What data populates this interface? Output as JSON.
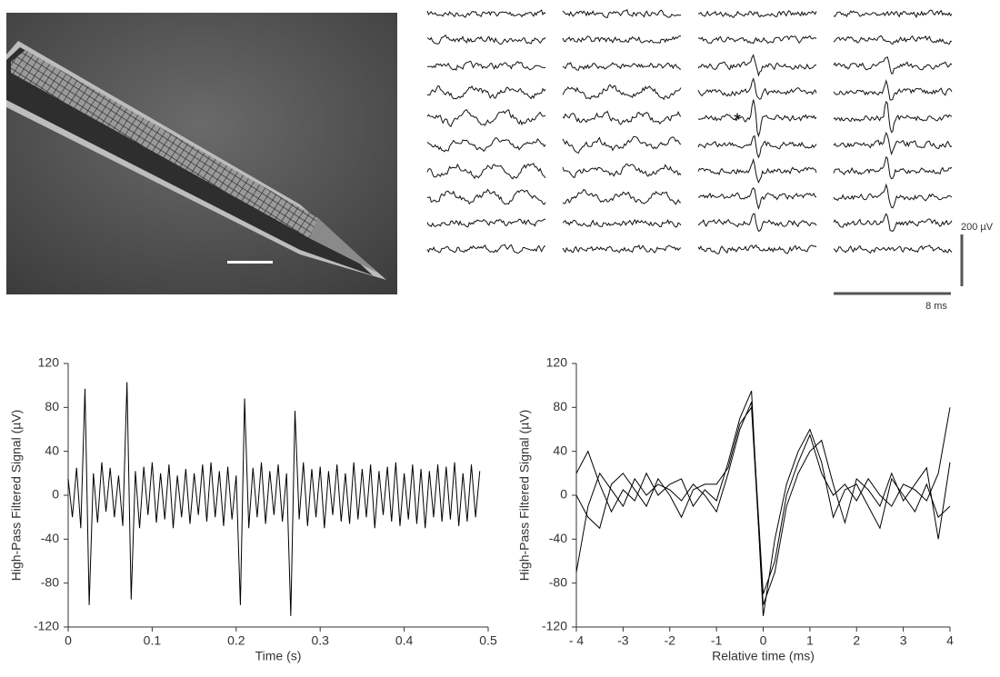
{
  "traces_panel": {
    "marker": "*",
    "scale_y_label": "200 µV",
    "scale_x_label": "8 ms"
  },
  "chart_data": [
    {
      "type": "line",
      "x_label": "Time (s)",
      "y_label": "High-Pass Filtered Signal (µV)",
      "xlim": [
        0,
        0.5
      ],
      "xticks": [
        0,
        0.1,
        0.2,
        0.3,
        0.4,
        0.5
      ],
      "ylim": [
        -120,
        120
      ],
      "yticks": [
        -120,
        -80,
        -40,
        0,
        40,
        80,
        120
      ],
      "x": [
        0,
        0.005,
        0.01,
        0.015,
        0.02,
        0.025,
        0.03,
        0.035,
        0.04,
        0.045,
        0.05,
        0.055,
        0.06,
        0.065,
        0.07,
        0.075,
        0.08,
        0.085,
        0.09,
        0.095,
        0.1,
        0.105,
        0.11,
        0.115,
        0.12,
        0.125,
        0.13,
        0.135,
        0.14,
        0.145,
        0.15,
        0.155,
        0.16,
        0.165,
        0.17,
        0.175,
        0.18,
        0.185,
        0.19,
        0.195,
        0.2,
        0.205,
        0.21,
        0.215,
        0.22,
        0.225,
        0.23,
        0.235,
        0.24,
        0.245,
        0.25,
        0.255,
        0.26,
        0.265,
        0.27,
        0.275,
        0.28,
        0.285,
        0.29,
        0.295,
        0.3,
        0.305,
        0.31,
        0.315,
        0.32,
        0.325,
        0.33,
        0.335,
        0.34,
        0.345,
        0.35,
        0.355,
        0.36,
        0.365,
        0.37,
        0.375,
        0.38,
        0.385,
        0.39,
        0.395,
        0.4,
        0.405,
        0.41,
        0.415,
        0.42,
        0.425,
        0.43,
        0.435,
        0.44,
        0.445,
        0.45,
        0.455,
        0.46,
        0.465,
        0.47,
        0.475,
        0.48,
        0.485,
        0.49
      ],
      "series": [
        {
          "color": "#000000",
          "values": [
            15,
            -20,
            25,
            -30,
            97,
            -100,
            20,
            -25,
            30,
            -15,
            25,
            -20,
            18,
            -28,
            103,
            -95,
            22,
            -30,
            26,
            -18,
            30,
            -25,
            20,
            -22,
            28,
            -30,
            18,
            -20,
            24,
            -26,
            20,
            -18,
            28,
            -24,
            30,
            -20,
            22,
            -28,
            26,
            -22,
            18,
            -100,
            88,
            -30,
            25,
            -20,
            30,
            -26,
            22,
            -18,
            28,
            -24,
            20,
            -110,
            77,
            -22,
            30,
            -28,
            24,
            -20,
            26,
            -30,
            22,
            -18,
            28,
            -24,
            20,
            -26,
            30,
            -22,
            24,
            -20,
            28,
            -30,
            22,
            -18,
            26,
            -24,
            30,
            -28,
            20,
            -22,
            28,
            -26,
            24,
            -30,
            22,
            -20,
            28,
            -24,
            26,
            -22,
            30,
            -28,
            20,
            -24,
            28,
            -20,
            22
          ]
        }
      ]
    },
    {
      "type": "line",
      "x_label": "Relative time (ms)",
      "y_label": "High-Pass Filtered Signal (µV)",
      "xlim": [
        -4,
        4
      ],
      "xticks": [
        {
          "value": -4,
          "label": "- 4"
        },
        -3,
        -2,
        -1,
        0,
        1,
        2,
        3,
        4
      ],
      "ylim": [
        -120,
        120
      ],
      "yticks": [
        -120,
        -80,
        -40,
        0,
        40,
        80,
        120
      ],
      "x": [
        -4,
        -3.75,
        -3.5,
        -3.25,
        -3,
        -2.75,
        -2.5,
        -2.25,
        -2,
        -1.75,
        -1.5,
        -1.25,
        -1,
        -0.75,
        -0.5,
        -0.25,
        0,
        0.25,
        0.5,
        0.75,
        1,
        1.25,
        1.5,
        1.75,
        2,
        2.25,
        2.5,
        2.75,
        3,
        3.25,
        3.5,
        3.75,
        4
      ],
      "series": [
        {
          "color": "#000000",
          "values": [
            -70,
            -10,
            20,
            5,
            -10,
            15,
            0,
            10,
            5,
            -5,
            10,
            0,
            -15,
            20,
            60,
            85,
            -90,
            -60,
            0,
            30,
            55,
            20,
            0,
            10,
            -5,
            15,
            0,
            -10,
            10,
            5,
            -5,
            20,
            80
          ]
        },
        {
          "color": "#000000",
          "values": [
            20,
            40,
            10,
            -15,
            5,
            -5,
            20,
            0,
            10,
            15,
            -10,
            5,
            -5,
            30,
            70,
            95,
            -110,
            -40,
            10,
            40,
            60,
            30,
            -20,
            5,
            10,
            -10,
            -30,
            15,
            0,
            -15,
            10,
            -20,
            -10
          ]
        },
        {
          "color": "#000000",
          "values": [
            0,
            -20,
            -30,
            10,
            20,
            5,
            -10,
            15,
            0,
            -20,
            5,
            10,
            10,
            25,
            65,
            80,
            -100,
            -70,
            -10,
            20,
            40,
            50,
            10,
            -25,
            15,
            5,
            -10,
            20,
            -5,
            10,
            25,
            -40,
            30
          ]
        }
      ]
    }
  ]
}
